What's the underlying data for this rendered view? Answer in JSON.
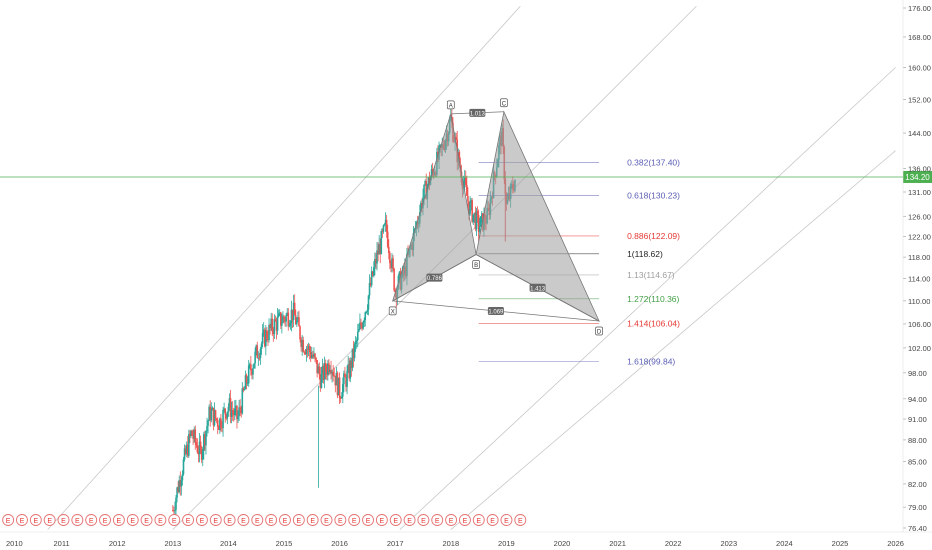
{
  "chart_data": {
    "type": "candlestick",
    "x_axis": {
      "ticks": [
        "2010",
        "2011",
        "2012",
        "2013",
        "2014",
        "2015",
        "2016",
        "2017",
        "2018",
        "2019",
        "2020",
        "2021",
        "2022",
        "2023",
        "2024",
        "2025",
        "2026"
      ]
    },
    "y_axis": {
      "scale": "log",
      "ticks": [
        "176.00",
        "168.00",
        "160.00",
        "152.00",
        "144.00",
        "136.00",
        "131.00",
        "126.00",
        "122.00",
        "118.00",
        "114.00",
        "110.00",
        "106.00",
        "102.00",
        "98.00",
        "94.00",
        "91.00",
        "88.00",
        "85.00",
        "82.00",
        "79.00",
        "76.40"
      ],
      "ylim": [
        75.8,
        178
      ]
    },
    "current_price": {
      "label": "134.20",
      "value": 134.2,
      "color": "#4caf50"
    },
    "colors": {
      "up": "#26a69a",
      "down": "#ef5350",
      "pattern_fill": "#9e9e9e",
      "fib_blue": "#5b5fb4",
      "fib_red": "#e53935",
      "fib_green": "#43a047",
      "fib_gray": "#9e9e9e",
      "fib_black": "#222222",
      "price_line": "#4caf50"
    },
    "price_path": [
      [
        "2013-01-01",
        78.6
      ],
      [
        "2013-03-01",
        84
      ],
      [
        "2013-05-01",
        89
      ],
      [
        "2013-07-01",
        86
      ],
      [
        "2013-09-01",
        92
      ],
      [
        "2013-11-01",
        90.5
      ],
      [
        "2014-01-01",
        93
      ],
      [
        "2014-03-01",
        91
      ],
      [
        "2014-05-01",
        97
      ],
      [
        "2014-07-01",
        101
      ],
      [
        "2014-09-01",
        104
      ],
      [
        "2014-11-01",
        106
      ],
      [
        "2015-01-01",
        107
      ],
      [
        "2015-03-01",
        108
      ],
      [
        "2015-05-01",
        103
      ],
      [
        "2015-07-01",
        101
      ],
      [
        "2015-09-01",
        97
      ],
      [
        "2015-11-01",
        100
      ],
      [
        "2016-01-01",
        95
      ],
      [
        "2016-03-01",
        98
      ],
      [
        "2016-05-01",
        104
      ],
      [
        "2016-07-01",
        110
      ],
      [
        "2016-09-01",
        118
      ],
      [
        "2016-11-01",
        124
      ],
      [
        "2017-01-01",
        112
      ],
      [
        "2017-03-01",
        115
      ],
      [
        "2017-05-01",
        122
      ],
      [
        "2017-07-01",
        130
      ],
      [
        "2017-09-01",
        135
      ],
      [
        "2017-11-01",
        140
      ],
      [
        "2018-01-01",
        147
      ],
      [
        "2018-03-01",
        136
      ],
      [
        "2018-05-01",
        128
      ],
      [
        "2018-07-01",
        124
      ],
      [
        "2018-09-01",
        126
      ],
      [
        "2018-11-01",
        138
      ],
      [
        "2018-12-01",
        144
      ],
      [
        "2019-01-01",
        128
      ],
      [
        "2019-02-01",
        131
      ],
      [
        "2019-03-01",
        134.2
      ]
    ],
    "pattern": {
      "points": [
        {
          "label": "X",
          "date": "2016-12-15",
          "value": 110
        },
        {
          "label": "A",
          "date": "2018-01-01",
          "value": 148.5
        },
        {
          "label": "B",
          "date": "2018-06-15",
          "value": 118.5
        },
        {
          "label": "C",
          "date": "2018-12-15",
          "value": 149
        },
        {
          "label": "D",
          "date": "2020-09-01",
          "value": 106.5
        }
      ],
      "ratios": [
        {
          "label": "0.786",
          "between": [
            "X",
            "B"
          ]
        },
        {
          "label": "1.013",
          "between": [
            "A",
            "C"
          ]
        },
        {
          "label": "1.413",
          "between": [
            "B",
            "D"
          ]
        },
        {
          "label": "1.069",
          "between": [
            "X",
            "D"
          ]
        }
      ]
    },
    "fib_levels": [
      {
        "label": "0.382(137.40)",
        "value": 137.4,
        "color": "fib_blue"
      },
      {
        "label": "0.618(130.23)",
        "value": 130.23,
        "color": "fib_blue"
      },
      {
        "label": "0.886(122.09)",
        "value": 122.09,
        "color": "fib_red"
      },
      {
        "label": "1(118.62)",
        "value": 118.62,
        "color": "fib_black"
      },
      {
        "label": "1.13(114.67)",
        "value": 114.67,
        "color": "fib_gray"
      },
      {
        "label": "1.272(110.36)",
        "value": 110.36,
        "color": "fib_green"
      },
      {
        "label": "1.414(106.04)",
        "value": 106.04,
        "color": "fib_red"
      },
      {
        "label": "1.618(99.84)",
        "value": 99.84,
        "color": "fib_blue"
      }
    ],
    "fib_start_date": "2018-07-01",
    "fib_end_date": "2020-09-01",
    "channel_lines": [
      {
        "from": [
          "2010-10-01",
          76.2
        ],
        "to": [
          "2019-04-01",
          176.5
        ]
      },
      {
        "from": [
          "2013-01-01",
          76.2
        ],
        "to": [
          "2022-06-01",
          176.5
        ]
      },
      {
        "from": [
          "2017-02-01",
          76.2
        ],
        "to": [
          "2026-01-01",
          160
        ]
      },
      {
        "from": [
          "2018-01-01",
          76.2
        ],
        "to": [
          "2026-01-01",
          140
        ]
      }
    ],
    "dividends": {
      "marker": "E",
      "count": 38,
      "start_date": "2010-01-15",
      "end_date": "2019-04-01"
    }
  }
}
